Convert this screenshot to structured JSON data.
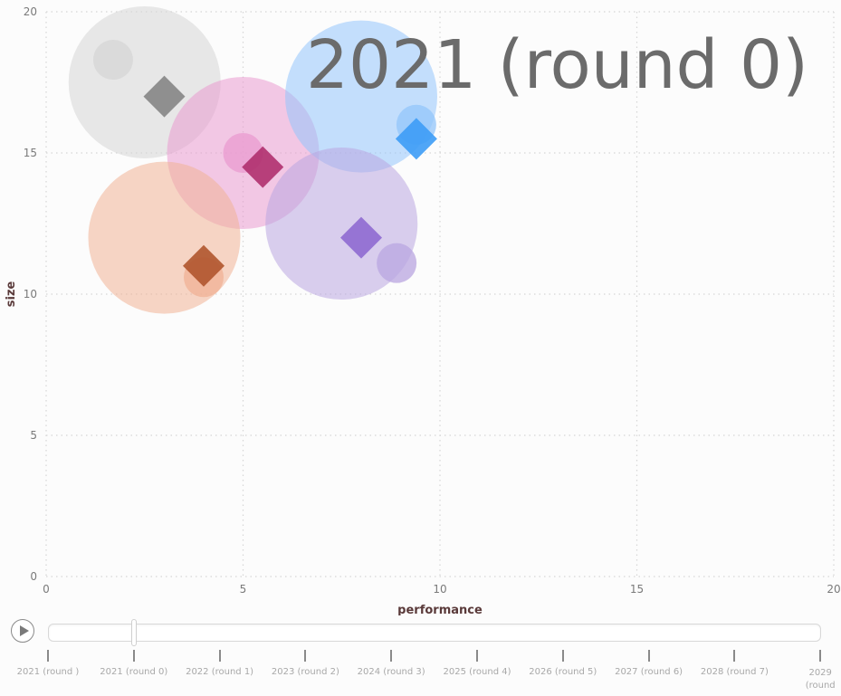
{
  "chart_data": {
    "type": "scatter",
    "frame_label": "2021 (round 0)",
    "xlabel": "performance",
    "ylabel": "size",
    "xlim": [
      0,
      20
    ],
    "ylim": [
      0,
      20
    ],
    "x_ticks": [
      "0",
      "5",
      "10",
      "15",
      "20"
    ],
    "y_ticks": [
      "0",
      "5",
      "10",
      "15",
      "20"
    ],
    "grid": true,
    "series": [
      {
        "color": "#d5d5d5",
        "diamond_color": "#858585",
        "big_bubble": {
          "x": 2.5,
          "y": 17.5
        },
        "small_bubble": {
          "x": 1.7,
          "y": 18.3
        },
        "diamond": {
          "x": 3.0,
          "y": 17.0
        }
      },
      {
        "color": "#ea9bd0",
        "diamond_color": "#b0306e",
        "big_bubble": {
          "x": 5.0,
          "y": 15.0
        },
        "small_bubble": {
          "x": 5.0,
          "y": 15.0
        },
        "diamond": {
          "x": 5.5,
          "y": 14.5
        }
      },
      {
        "color": "#93c5fb",
        "diamond_color": "#3d9cf6",
        "big_bubble": {
          "x": 8.0,
          "y": 17.0
        },
        "small_bubble": {
          "x": 9.4,
          "y": 16.0
        },
        "diamond": {
          "x": 9.4,
          "y": 15.5
        }
      },
      {
        "color": "#f0b295",
        "diamond_color": "#b0552e",
        "big_bubble": {
          "x": 3.0,
          "y": 12.0
        },
        "small_bubble": {
          "x": 4.0,
          "y": 10.6
        },
        "diamond": {
          "x": 4.0,
          "y": 11.0
        }
      },
      {
        "color": "#b9a5e0",
        "diamond_color": "#8f6ad0",
        "big_bubble": {
          "x": 7.5,
          "y": 12.5
        },
        "small_bubble": {
          "x": 8.9,
          "y": 11.1
        },
        "diamond": {
          "x": 8.0,
          "y": 12.0
        }
      }
    ]
  },
  "player": {
    "current_index": 1,
    "frames": [
      "2021 (round )",
      "2021 (round 0)",
      "2022 (round 1)",
      "2023 (round 2)",
      "2024 (round 3)",
      "2025 (round 4)",
      "2026 (round 5)",
      "2027 (round 6)",
      "2028 (round 7)",
      "2029 (round"
    ]
  }
}
